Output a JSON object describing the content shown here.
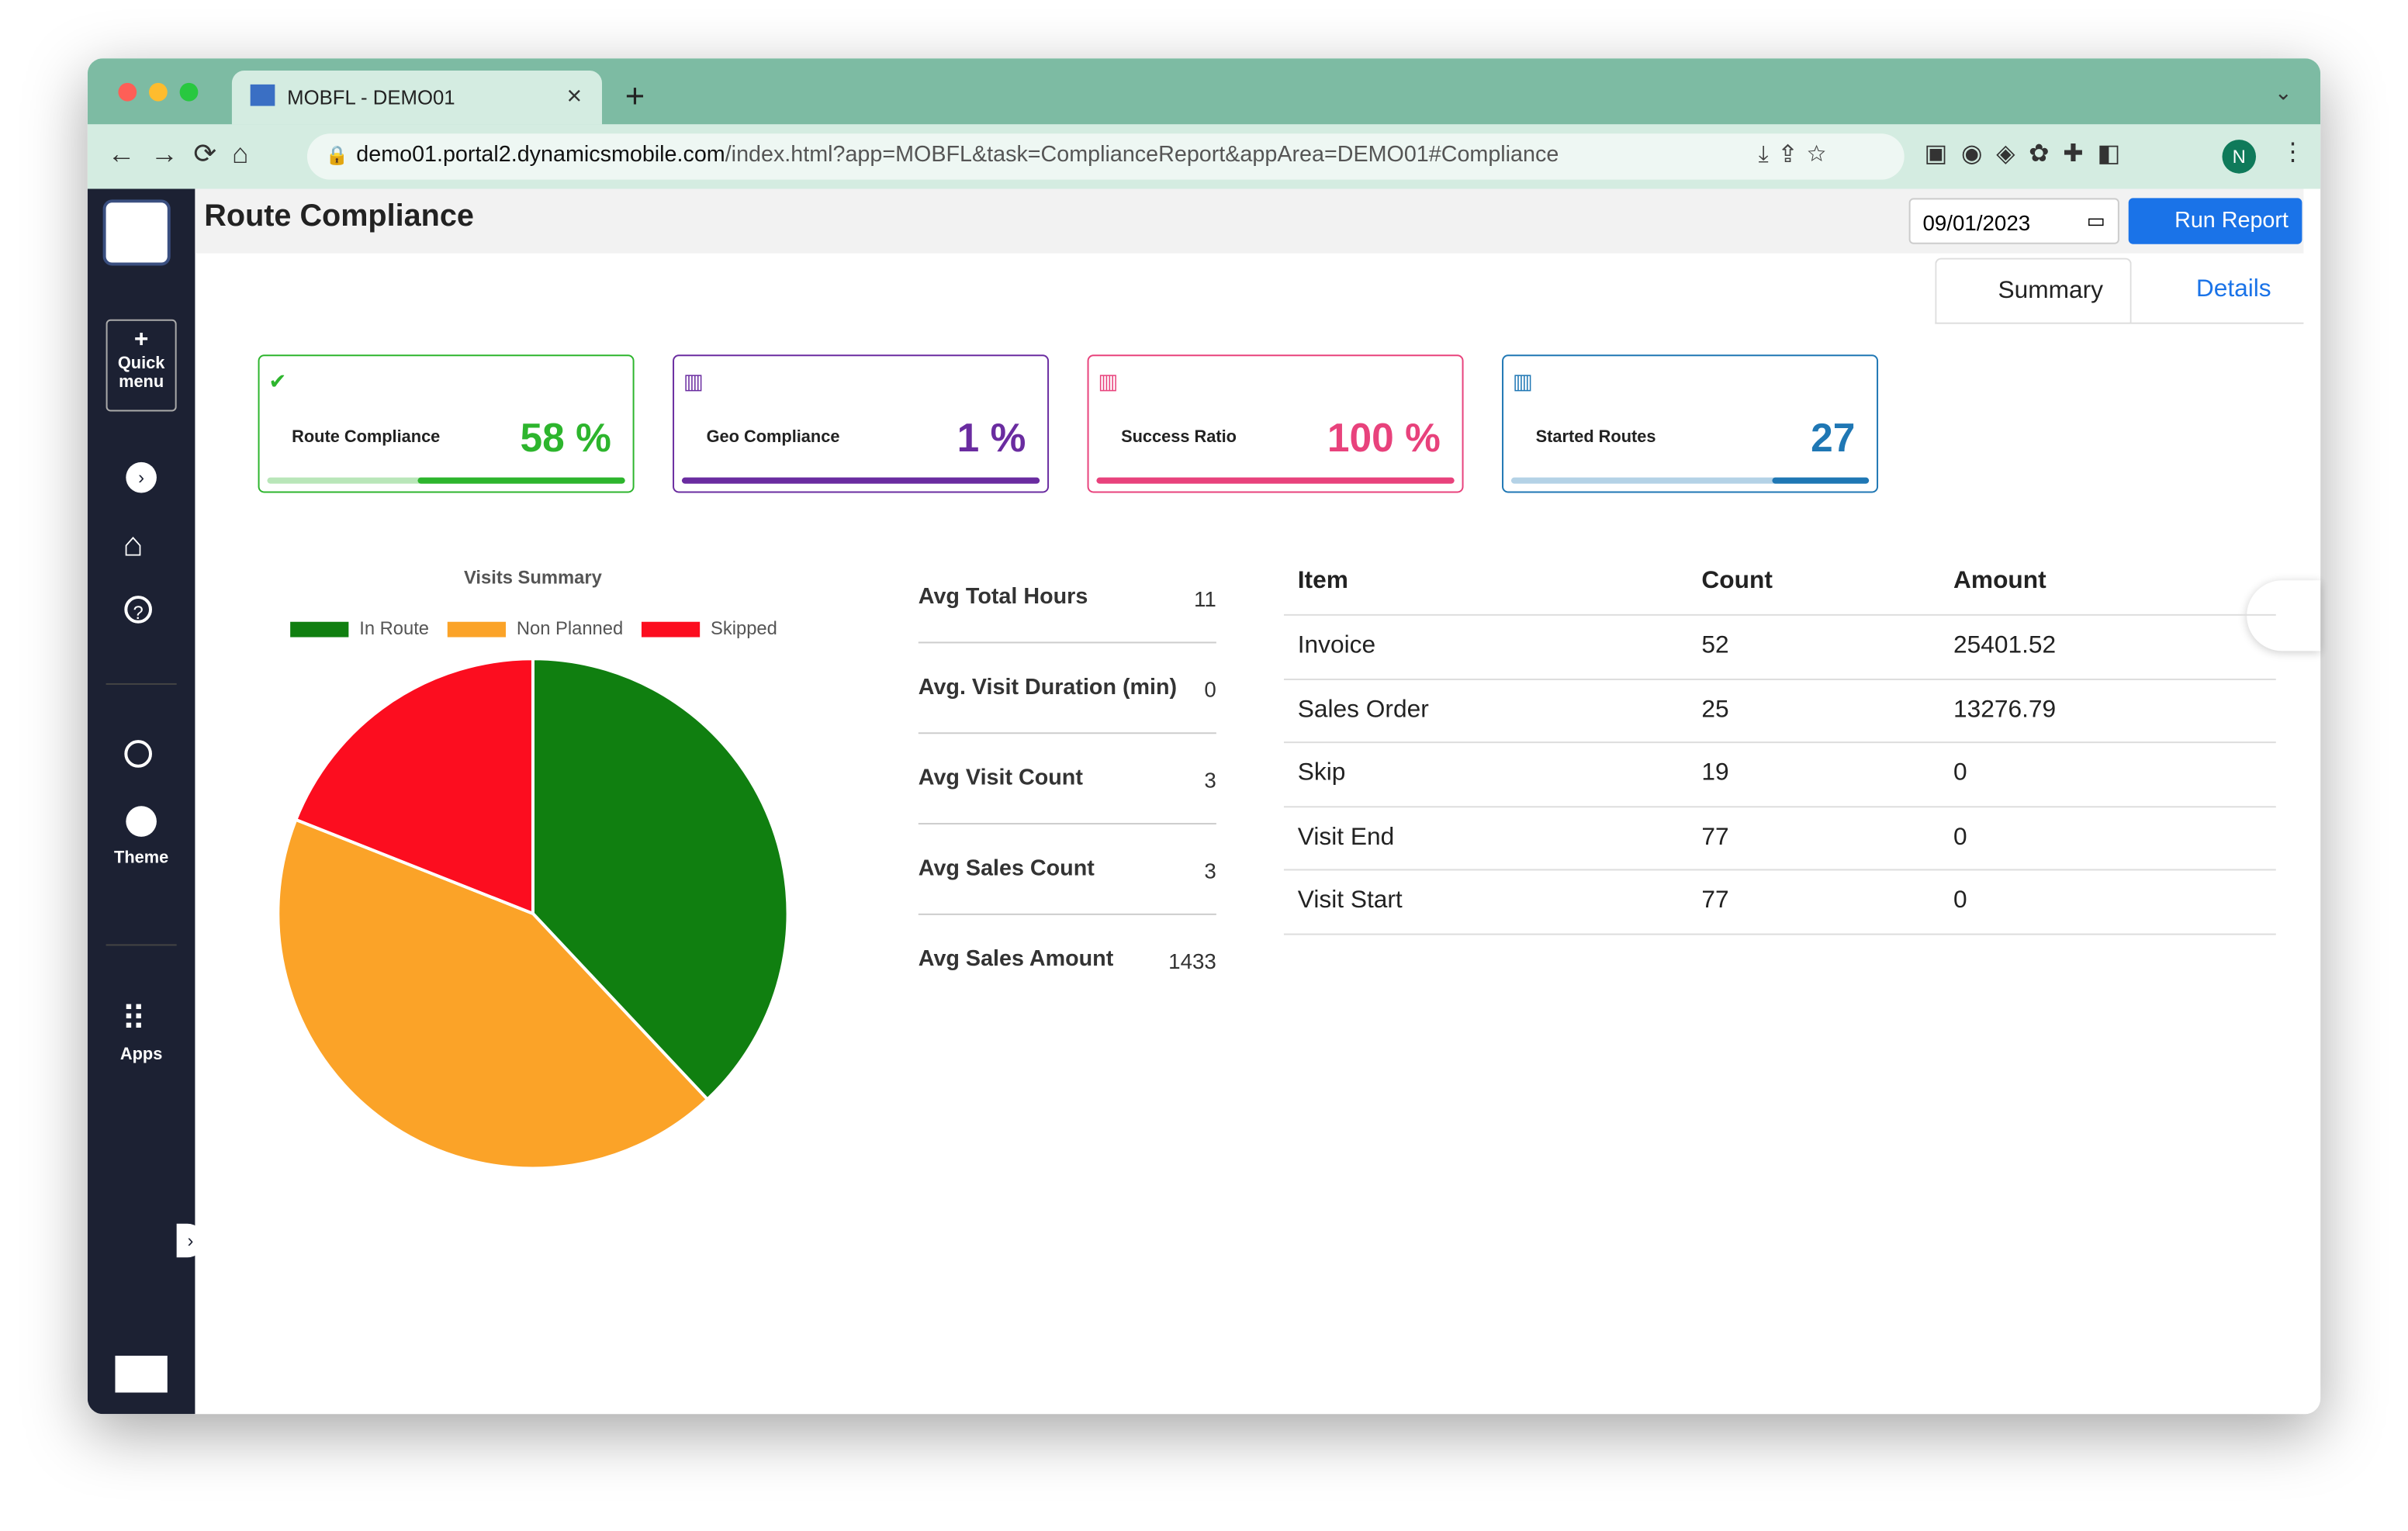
{
  "browser": {
    "tab_title": "MOBFL - DEMO01",
    "url_host": "demo01.portal2.dynamicsmobile.com",
    "url_path": "/index.html?app=MOBFL&task=ComplianceReport&appArea=DEMO01#Compliance",
    "profile": "N"
  },
  "sidebar": {
    "quick_menu": "Quick menu",
    "theme": "Theme",
    "apps": "Apps"
  },
  "header": {
    "title": "Route Compliance",
    "date": "09/01/2023",
    "run_report": "Run Report"
  },
  "tabs": [
    "Summary",
    "Details"
  ],
  "cards": [
    {
      "label": "Route Compliance",
      "value": "58 %",
      "color": "#2db52d"
    },
    {
      "label": "Geo Compliance",
      "value": "1 %",
      "color": "#6a2ca0"
    },
    {
      "label": "Success Ratio",
      "value": "100 %",
      "color": "#e8427c"
    },
    {
      "label": "Started Routes",
      "value": "27",
      "color": "#1f77b4"
    }
  ],
  "chart_data": {
    "type": "pie",
    "title": "Visits Summary",
    "categories": [
      "In Route",
      "Non Planned",
      "Skipped"
    ],
    "values": [
      38,
      43,
      19
    ],
    "colors": [
      "#107f10",
      "#fba328",
      "#fc0d1f"
    ]
  },
  "stats": [
    {
      "label": "Avg Total Hours",
      "value": "11"
    },
    {
      "label": "Avg. Visit Duration (min)",
      "value": "0"
    },
    {
      "label": "Avg Visit Count",
      "value": "3"
    },
    {
      "label": "Avg Sales Count",
      "value": "3"
    },
    {
      "label": "Avg Sales Amount",
      "value": "1433"
    }
  ],
  "table": {
    "columns": [
      "Item",
      "Count",
      "Amount"
    ],
    "rows": [
      [
        "Invoice",
        "52",
        "25401.52"
      ],
      [
        "Sales Order",
        "25",
        "13276.79"
      ],
      [
        "Skip",
        "19",
        "0"
      ],
      [
        "Visit End",
        "77",
        "0"
      ],
      [
        "Visit Start",
        "77",
        "0"
      ]
    ]
  }
}
